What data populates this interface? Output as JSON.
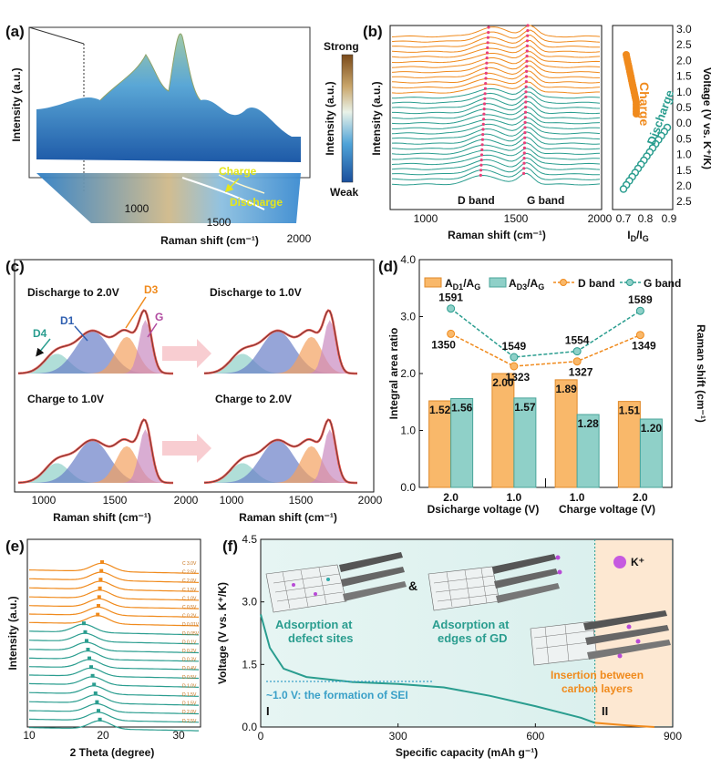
{
  "colors": {
    "orange": "#f08a1c",
    "teal": "#2a9d8f",
    "teal_light": "#8fd0c8",
    "orange_light": "#f9b86a",
    "red_fit": "#e8524a",
    "pink_marker": "#e8407a"
  },
  "panels": {
    "a": {
      "label": "(a)",
      "colorbar_strong": "Strong",
      "colorbar_weak": "Weak",
      "colorbar_label": "Intensity (a.u.)",
      "z_label": "Intensity (a.u.)",
      "x_label": "Raman shift (cm⁻¹)",
      "x_ticks": [
        "1000",
        "1500",
        "2000"
      ],
      "charge": "Charge",
      "discharge": "Discharge"
    },
    "b": {
      "label": "(b)",
      "y_label": "Intensity (a.u.)",
      "x_label": "Raman shift (cm⁻¹)",
      "x_ticks": [
        "1000",
        "1500",
        "2000"
      ],
      "d_band": "D band",
      "g_band": "G band",
      "side_x_label": "I",
      "side_x_sub_D": "D",
      "side_x_sep": "/I",
      "side_x_sub_G": "G",
      "side_x_ticks": [
        "0.7",
        "0.8",
        "0.9"
      ],
      "side_y_label": "Voltage (V vs. K⁺/K)",
      "side_y_ticks": [
        "3.0",
        "2.5",
        "2.0",
        "1.5",
        "1.0",
        "0.5",
        "0.0",
        "0.5",
        "1.0",
        "1.5",
        "2.0",
        "2.5"
      ],
      "charge": "Charge",
      "discharge": "Discharge"
    },
    "c": {
      "label": "(c)",
      "titles": [
        "Discharge to 2.0V",
        "Discharge to 1.0V",
        "Charge to 1.0V",
        "Charge to 2.0V"
      ],
      "peaks": [
        "D4",
        "D1",
        "D3",
        "G"
      ],
      "x_label": "Raman shift (cm⁻¹)",
      "x_ticks": [
        "1000",
        "1500",
        "2000"
      ]
    },
    "d": {
      "label": "(d)",
      "y_label": "Integral area ratio",
      "y2_label": "Raman shift (cm⁻¹)",
      "x_label_left": "Dsicharge voltage (V)",
      "x_label_right": "Charge voltage (V)",
      "legend": [
        "A",
        "A",
        "D band",
        "G band"
      ],
      "legend_subs": [
        "D1",
        "D3"
      ],
      "legend_denoms": [
        "/A",
        "/A"
      ]
    },
    "e": {
      "label": "(e)",
      "y_label": "Intensity (a.u.)",
      "x_label": "2 Theta (degree)",
      "x_ticks": [
        "10",
        "20",
        "30"
      ],
      "trace_labels": [
        "C 3.0V",
        "C 2.5V",
        "C 2.0V",
        "C 1.5V",
        "C 1.0V",
        "C 0.5V",
        "C 0.2V",
        "D 0.01V",
        "D 0.05V",
        "D 0.1V",
        "D 0.2V",
        "D 0.3V",
        "D 0.4V",
        "D 0.5V",
        "D 1.0V",
        "D 1.5V",
        "D 1.5V",
        "D 2.0V",
        "D 2.5V"
      ]
    },
    "f": {
      "label": "(f)",
      "y_label": "Voltage (V vs. K⁺/K)",
      "x_label": "Specific capacity (mAh g⁻¹)",
      "x_ticks": [
        "0",
        "300",
        "600",
        "900"
      ],
      "y_ticks": [
        "0.0",
        "1.5",
        "3.0",
        "4.5"
      ],
      "ion_label": "K⁺",
      "amp": "&",
      "anno1": "Adsorption at",
      "anno1b": "defect sites",
      "anno2": "Adsorption at",
      "anno2b": "edges of GD",
      "anno3": "Insertion between",
      "anno3b": "carbon layers",
      "sei": "~1.0 V: the formation of SEI",
      "region1": "I",
      "region2": "II"
    }
  },
  "chart_data": [
    {
      "panel": "d",
      "type": "bar",
      "categories": [
        "2.0",
        "1.0",
        "1.0",
        "2.0"
      ],
      "series": [
        {
          "name": "AD1/AG",
          "values": [
            1.52,
            2.0,
            1.89,
            1.51
          ]
        },
        {
          "name": "AD3/AG",
          "values": [
            1.56,
            1.57,
            1.28,
            1.2
          ]
        }
      ],
      "value_labels_d1": [
        "1.52",
        "2.00",
        "1.89",
        "1.51"
      ],
      "value_labels_d3": [
        "1.56",
        "1.57",
        "1.28",
        "1.20"
      ],
      "line_series": [
        {
          "name": "D band",
          "values": [
            1350,
            1323,
            1327,
            1349
          ]
        },
        {
          "name": "G band",
          "values": [
            1591,
            1549,
            1554,
            1589
          ]
        }
      ],
      "line_labels_d": [
        "1350",
        "1323",
        "1327",
        "1349"
      ],
      "line_labels_g": [
        "1591",
        "1549",
        "1554",
        "1589"
      ],
      "ylim": [
        0.0,
        4.0
      ],
      "y_ticks": [
        "0.0",
        "1.0",
        "2.0",
        "3.0",
        "4.0"
      ]
    },
    {
      "panel": "f",
      "type": "line",
      "title": "",
      "xlabel": "Specific capacity (mAh g-1)",
      "ylabel": "Voltage (V vs. K+/K)",
      "x": [
        0,
        20,
        50,
        100,
        200,
        300,
        400,
        500,
        600,
        700,
        730,
        800,
        860
      ],
      "y": [
        2.7,
        1.9,
        1.4,
        1.2,
        1.08,
        1.03,
        0.95,
        0.75,
        0.5,
        0.22,
        0.1,
        0.04,
        0.0
      ],
      "xlim": [
        0,
        900
      ],
      "ylim": [
        0,
        4.5
      ]
    }
  ]
}
